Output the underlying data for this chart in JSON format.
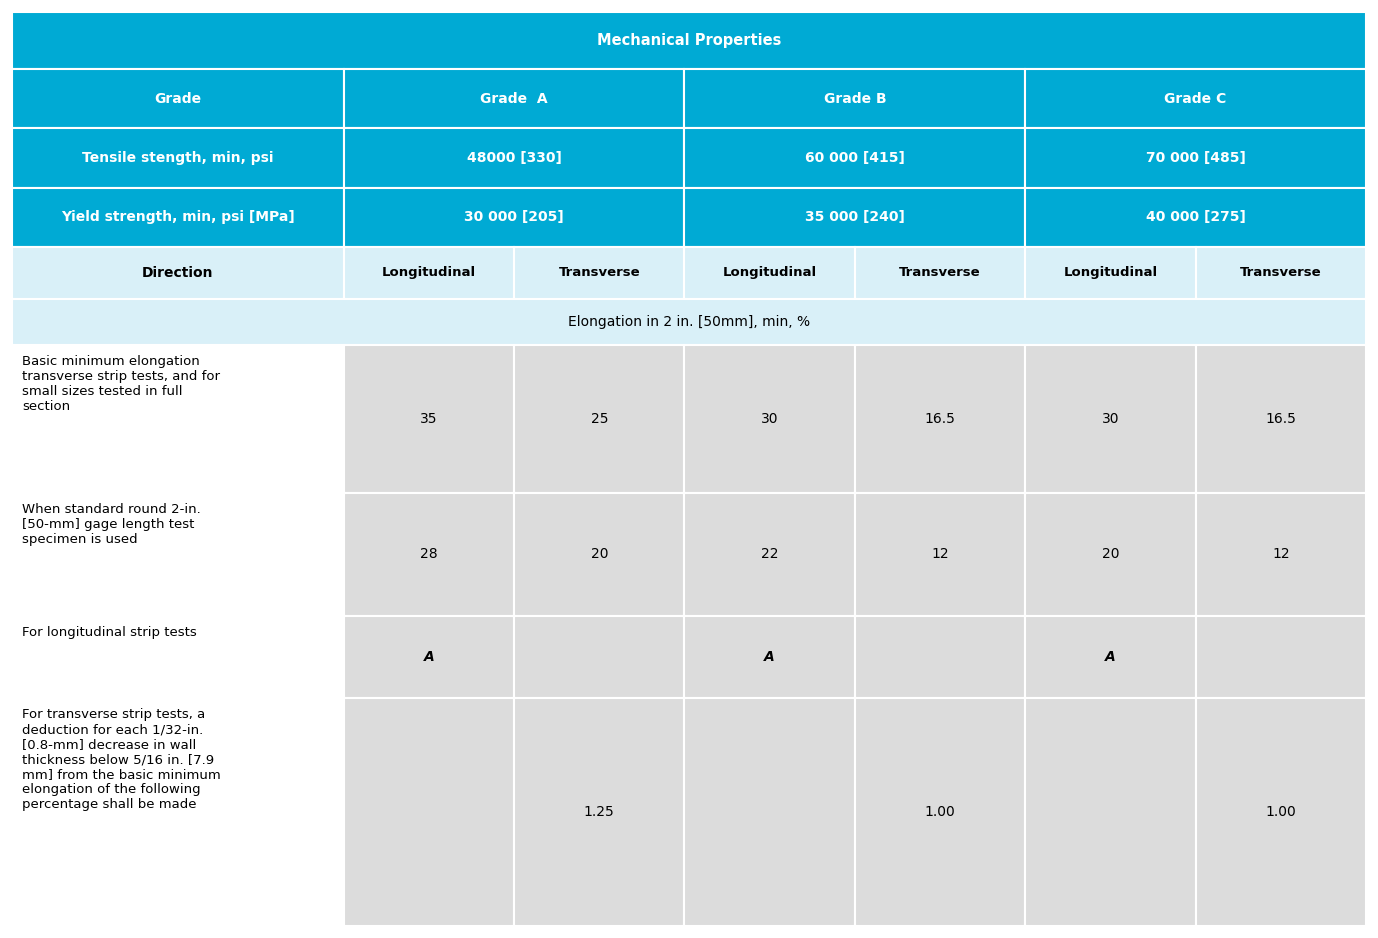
{
  "title": "Mechanical Properties",
  "header_bg": "#00aad4",
  "header_text_color": "#ffffff",
  "direction_bg": "#d9f0f8",
  "elongation_bg": "#d9f0f8",
  "data_label_bg": "#f0f0f0",
  "data_cell_bg": "#dcdcdc",
  "border_color": "#ffffff",
  "grades": [
    "Grade  A",
    "Grade B",
    "Grade C"
  ],
  "tensile": [
    "48000 [330]",
    "60 000 [415]",
    "70 000 [485]"
  ],
  "yield_vals": [
    "30 000 [205]",
    "35 000 [240]",
    "40 000 [275]"
  ],
  "col1_label": "Grade",
  "tensile_label": "Tensile stength, min, psi",
  "yield_label": "Yield strength, min, psi [MPa]",
  "direction_label": "Direction",
  "elongation_label": "Elongation in 2 in. [50mm], min, %",
  "dir_cols": [
    "Longitudinal",
    "Transverse",
    "Longitudinal",
    "Transverse",
    "Longitudinal",
    "Transverse"
  ],
  "rows": [
    {
      "label": "Basic minimum elongation\ntransverse strip tests, and for\nsmall sizes tested in full\nsection",
      "values": [
        "35",
        "25",
        "30",
        "16.5",
        "30",
        "16.5"
      ],
      "italic": [
        false,
        false,
        false,
        false,
        false,
        false
      ]
    },
    {
      "label": "When standard round 2-in.\n[50-mm] gage length test\nspecimen is used",
      "values": [
        "28",
        "20",
        "22",
        "12",
        "20",
        "12"
      ],
      "italic": [
        false,
        false,
        false,
        false,
        false,
        false
      ]
    },
    {
      "label": "For longitudinal strip tests",
      "values": [
        "A",
        "",
        "A",
        "",
        "A",
        ""
      ],
      "italic": [
        true,
        false,
        true,
        false,
        true,
        false
      ]
    },
    {
      "label": "For transverse strip tests, a\ndeduction for each 1/32-in.\n[0.8-mm] decrease in wall\nthickness below 5/16 in. [7.9\nmm] from the basic minimum\nelongation of the following\npercentage shall be made",
      "values": [
        "",
        "1.25",
        "",
        "1.00",
        "",
        "1.00"
      ],
      "italic": [
        false,
        false,
        false,
        false,
        false,
        false
      ]
    }
  ],
  "fig_width": 13.78,
  "fig_height": 9.38,
  "dpi": 100
}
